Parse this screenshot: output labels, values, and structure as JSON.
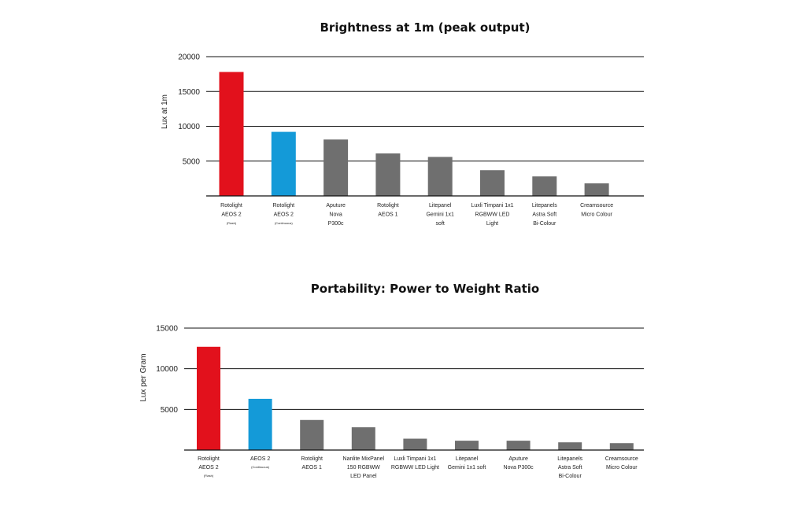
{
  "chart_data": [
    {
      "type": "bar",
      "title": "Brightness at 1m (peak output)",
      "xlabel": "",
      "ylabel": "Lux at 1m",
      "ylim": [
        0,
        20000
      ],
      "yticks": [
        5000,
        10000,
        15000,
        20000
      ],
      "grid": true,
      "categories": [
        {
          "lines": [
            "Rotolight",
            "AEOS 2"
          ],
          "note": "(Flash)"
        },
        {
          "lines": [
            "Rotolight",
            "AEOS 2"
          ],
          "note": "(Continuous)"
        },
        {
          "lines": [
            "Aputure",
            "Nova",
            "P300c"
          ]
        },
        {
          "lines": [
            "Rotolight",
            "AEOS 1"
          ]
        },
        {
          "lines": [
            "Litepanel",
            "Gemini 1x1",
            "soft"
          ]
        },
        {
          "lines": [
            "Luxli Timpani 1x1",
            "RGBWW LED",
            "Light"
          ]
        },
        {
          "lines": [
            "Litepanels",
            "Astra Soft",
            "Bi-Colour"
          ]
        },
        {
          "lines": [
            "Creamsource",
            "Micro Colour"
          ]
        }
      ],
      "values": [
        17800,
        9200,
        8100,
        6100,
        5600,
        3700,
        2800,
        1800
      ],
      "colors": [
        "#e2111c",
        "#149ad8",
        "#6f6f6f",
        "#6f6f6f",
        "#6f6f6f",
        "#6f6f6f",
        "#6f6f6f",
        "#6f6f6f"
      ]
    },
    {
      "type": "bar",
      "title": "Portability: Power to Weight Ratio",
      "xlabel": "",
      "ylabel": "Lux per Gram",
      "ylim": [
        0,
        15000
      ],
      "yticks": [
        5000,
        10000,
        15000
      ],
      "grid": true,
      "categories": [
        {
          "lines": [
            "Rotolight",
            "AEOS 2"
          ],
          "note": "(Flash)"
        },
        {
          "lines": [
            "AEOS 2"
          ],
          "note": "(Continuous)"
        },
        {
          "lines": [
            "Rotolight",
            "AEOS 1"
          ]
        },
        {
          "lines": [
            "Nanlite MixPanel",
            "150 RGBWW",
            "LED Panel"
          ]
        },
        {
          "lines": [
            "Luxli Timpani 1x1",
            "RGBWW LED Light"
          ]
        },
        {
          "lines": [
            "Litepanel",
            "Gemini 1x1 soft"
          ]
        },
        {
          "lines": [
            "Aputure",
            "Nova P300c"
          ]
        },
        {
          "lines": [
            "Litepanels",
            "Astra Soft",
            "Bi-Colour"
          ]
        },
        {
          "lines": [
            "Creamsource",
            "Micro Colour"
          ]
        }
      ],
      "values": [
        12700,
        6300,
        3700,
        2800,
        1400,
        1150,
        1150,
        950,
        850
      ],
      "colors": [
        "#e2111c",
        "#149ad8",
        "#6f6f6f",
        "#6f6f6f",
        "#6f6f6f",
        "#6f6f6f",
        "#6f6f6f",
        "#6f6f6f",
        "#6f6f6f"
      ]
    }
  ]
}
